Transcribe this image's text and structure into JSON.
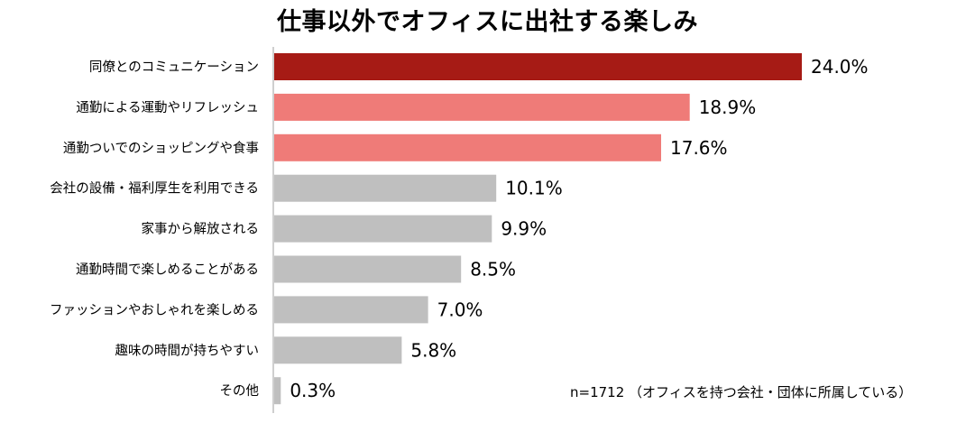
{
  "chart_data": {
    "type": "bar",
    "orientation": "horizontal",
    "title": "仕事以外でオフィスに出社する楽しみ",
    "categories": [
      "同僚とのコミュニケーション",
      "通勤による運動やリフレッシュ",
      "通勤ついでのショッピングや食事",
      "会社の設備・福利厚生を利用できる",
      "家事から解放される",
      "通勤時間で楽しめることがある",
      "ファッションやおしゃれを楽しめる",
      "趣味の時間が持ちやすい",
      "その他"
    ],
    "values": [
      24.0,
      18.9,
      17.6,
      10.1,
      9.9,
      8.5,
      7.0,
      5.8,
      0.3
    ],
    "value_labels": [
      "24.0%",
      "18.9%",
      "17.6%",
      "10.1%",
      "9.9%",
      "8.5%",
      "7.0%",
      "5.8%",
      "0.3%"
    ],
    "bar_colors": [
      "#a61b15",
      "#ef7b78",
      "#ef7b78",
      "#bfbfbf",
      "#bfbfbf",
      "#bfbfbf",
      "#bfbfbf",
      "#bfbfbf",
      "#bfbfbf"
    ],
    "xlim": [
      0,
      24.0
    ],
    "grid": false,
    "legend": "none",
    "note": "n=1712 （オフィスを持つ会社・団体に所属している）"
  }
}
